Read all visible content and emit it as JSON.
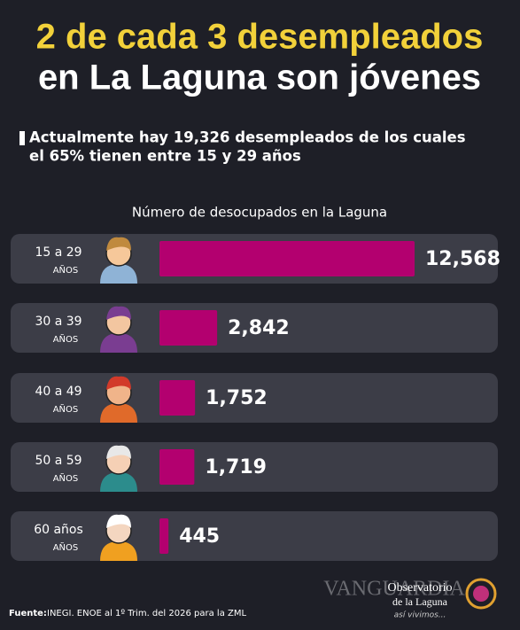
{
  "chart_data": {
    "type": "bar",
    "title": "2 de cada 3 desempleados",
    "title_line2": "en La Laguna son jóvenes",
    "subtitle": [
      "Actualmente hay 19,326 desempleados de los cuales",
      "el 65% tienen entre 15 y 29 años"
    ],
    "chart_title": "Número de desocupados en la Laguna",
    "categories": [
      "15 a 29",
      "30 a 39",
      "40 a 49",
      "50 a 59",
      "60 años"
    ],
    "category_unit": "AÑOS",
    "values": [
      12568,
      2842,
      1752,
      1719,
      445
    ],
    "value_labels": [
      "12,568",
      "2,842",
      "1,752",
      "1,719",
      "445"
    ],
    "color": "#b3006f",
    "source_label": "Fuente:",
    "source": "INEGI. ENOE al 1º Trim. del 2026 para la ZML",
    "watermark": "VANGUARDIA",
    "logo": [
      "Observatorio",
      "de la Laguna",
      "así vivimos..."
    ]
  }
}
